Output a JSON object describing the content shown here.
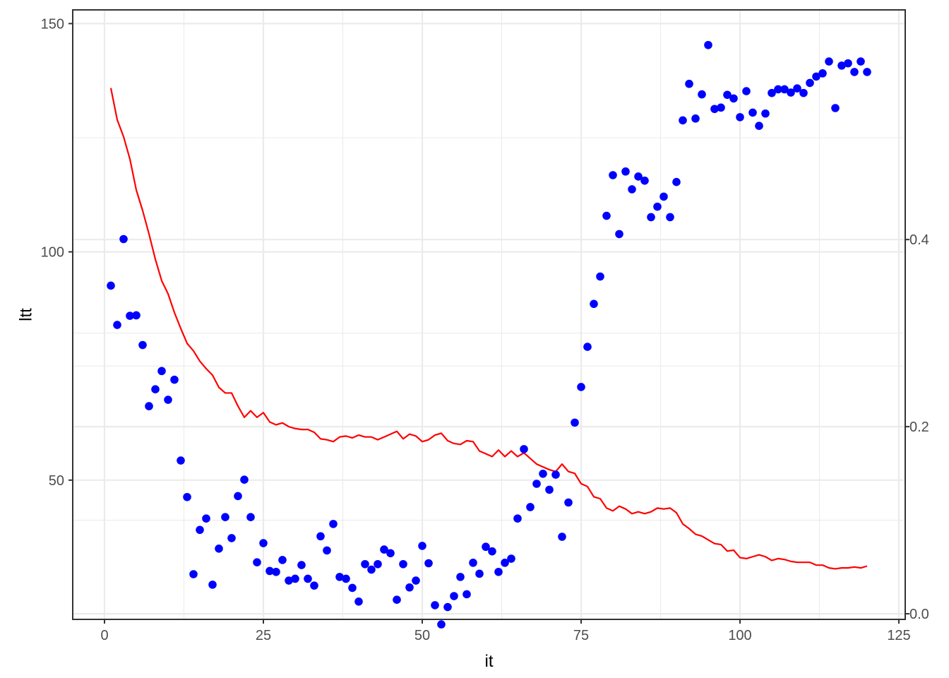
{
  "chart_data": {
    "type": "scatter",
    "title": "",
    "xlabel": "it",
    "ylabel": "ltt",
    "xlim": [
      -5,
      126
    ],
    "ylim": [
      19.5,
      153
    ],
    "y2lim": [
      -0.006,
      0.6455
    ],
    "x_ticks": [
      0,
      25,
      50,
      75,
      100,
      125
    ],
    "y_ticks": [
      50,
      100,
      150
    ],
    "y2_ticks": [
      0.0,
      0.2,
      0.4
    ],
    "y2_tick_labels": [
      "0.0",
      "0.2",
      "0.4"
    ],
    "grid": true,
    "colors": {
      "points": "#0000ff",
      "line": "#ff0000"
    },
    "series": [
      {
        "type": "scatter",
        "axis": "left",
        "x": [
          1,
          2,
          3,
          4,
          5,
          6,
          7,
          8,
          9,
          10,
          11,
          12,
          13,
          14,
          15,
          16,
          17,
          18,
          19,
          20,
          21,
          22,
          23,
          24,
          25,
          26,
          27,
          28,
          29,
          30,
          31,
          32,
          33,
          34,
          35,
          36,
          37,
          38,
          39,
          40,
          41,
          42,
          43,
          44,
          45,
          46,
          47,
          48,
          49,
          50,
          51,
          52,
          53,
          54,
          55,
          56,
          57,
          58,
          59,
          60,
          61,
          62,
          63,
          64,
          65,
          66,
          67,
          68,
          69,
          70,
          71,
          72,
          73,
          74,
          75,
          76,
          77,
          78,
          79,
          80,
          81,
          82,
          83,
          84,
          85,
          86,
          87,
          88,
          89,
          90,
          91,
          92,
          93,
          94,
          95,
          96,
          97,
          98,
          99,
          100,
          101,
          102,
          103,
          104,
          105,
          106,
          107,
          108,
          109,
          110,
          111,
          112,
          113,
          114,
          115,
          116,
          117,
          118,
          119,
          120
        ],
        "values": [
          92.6,
          84.0,
          102.8,
          86.0,
          86.1,
          79.6,
          66.2,
          69.9,
          73.9,
          67.6,
          72.0,
          54.3,
          46.3,
          29.4,
          39.1,
          41.6,
          27.1,
          35.0,
          41.9,
          37.3,
          46.5,
          50.1,
          41.9,
          32.0,
          36.2,
          30.1,
          29.9,
          32.5,
          28.0,
          28.4,
          31.4,
          28.4,
          26.9,
          37.7,
          34.6,
          40.4,
          28.8,
          28.4,
          26.4,
          23.4,
          31.6,
          30.4,
          31.6,
          34.8,
          34.0,
          23.8,
          31.6,
          26.5,
          28.0,
          35.6,
          31.8,
          22.6,
          18.4,
          22.2,
          24.6,
          28.8,
          25.0,
          31.9,
          29.5,
          35.4,
          34.4,
          29.9,
          31.9,
          32.8,
          41.6,
          56.8,
          44.1,
          49.2,
          51.4,
          47.9,
          51.2,
          37.6,
          45.1,
          62.6,
          70.4,
          79.2,
          88.6,
          94.6,
          107.9,
          116.8,
          103.9,
          117.6,
          113.7,
          116.5,
          115.6,
          107.6,
          109.9,
          112.1,
          107.6,
          115.3,
          128.8,
          136.8,
          129.2,
          134.5,
          145.3,
          131.3,
          131.6,
          134.4,
          133.6,
          129.5,
          135.2,
          130.5,
          127.6,
          130.3,
          134.8,
          135.6,
          135.6,
          134.9,
          135.8,
          134.8,
          137.0,
          138.4,
          139.1,
          141.7,
          131.5,
          140.8,
          141.3,
          139.4,
          141.7,
          139.4
        ]
      },
      {
        "type": "line",
        "axis": "right",
        "x": [
          1,
          2,
          3,
          4,
          5,
          6,
          7,
          8,
          9,
          10,
          11,
          12,
          13,
          14,
          15,
          16,
          17,
          18,
          19,
          20,
          21,
          22,
          23,
          24,
          25,
          26,
          27,
          28,
          29,
          30,
          31,
          32,
          33,
          34,
          35,
          36,
          37,
          38,
          39,
          40,
          41,
          42,
          43,
          44,
          45,
          46,
          47,
          48,
          49,
          50,
          51,
          52,
          53,
          54,
          55,
          56,
          57,
          58,
          59,
          60,
          61,
          62,
          63,
          64,
          65,
          66,
          67,
          68,
          69,
          70,
          71,
          72,
          73,
          74,
          75,
          76,
          77,
          78,
          79,
          80,
          81,
          82,
          83,
          84,
          85,
          86,
          87,
          88,
          89,
          90,
          91,
          92,
          93,
          94,
          95,
          96,
          97,
          98,
          99,
          100,
          101,
          102,
          103,
          104,
          105,
          106,
          107,
          108,
          109,
          110,
          111,
          112,
          113,
          114,
          115,
          116,
          117,
          118,
          119,
          120
        ],
        "values": [
          0.562,
          0.528,
          0.51,
          0.486,
          0.453,
          0.431,
          0.406,
          0.379,
          0.356,
          0.342,
          0.322,
          0.305,
          0.289,
          0.281,
          0.27,
          0.262,
          0.255,
          0.242,
          0.236,
          0.236,
          0.222,
          0.21,
          0.217,
          0.21,
          0.215,
          0.205,
          0.202,
          0.204,
          0.2,
          0.198,
          0.197,
          0.197,
          0.194,
          0.187,
          0.186,
          0.184,
          0.189,
          0.19,
          0.188,
          0.191,
          0.189,
          0.189,
          0.186,
          0.189,
          0.192,
          0.195,
          0.187,
          0.192,
          0.19,
          0.184,
          0.186,
          0.191,
          0.193,
          0.185,
          0.182,
          0.181,
          0.185,
          0.184,
          0.174,
          0.171,
          0.168,
          0.175,
          0.168,
          0.174,
          0.168,
          0.172,
          0.166,
          0.16,
          0.157,
          0.154,
          0.152,
          0.16,
          0.152,
          0.15,
          0.139,
          0.136,
          0.125,
          0.123,
          0.113,
          0.11,
          0.115,
          0.112,
          0.107,
          0.109,
          0.107,
          0.109,
          0.113,
          0.112,
          0.113,
          0.108,
          0.096,
          0.091,
          0.085,
          0.083,
          0.079,
          0.075,
          0.074,
          0.067,
          0.068,
          0.06,
          0.059,
          0.061,
          0.063,
          0.061,
          0.057,
          0.059,
          0.058,
          0.056,
          0.055,
          0.055,
          0.055,
          0.052,
          0.052,
          0.049,
          0.048,
          0.049,
          0.049,
          0.05,
          0.049,
          0.051
        ]
      }
    ]
  }
}
